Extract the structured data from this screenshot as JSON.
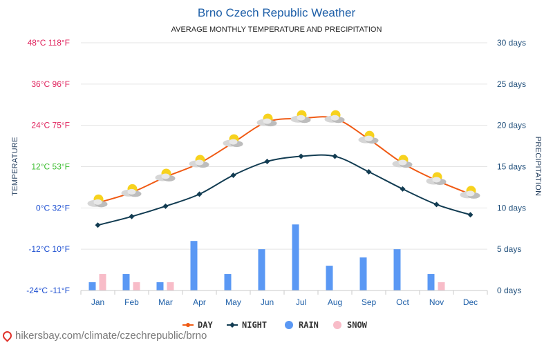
{
  "chart_data": {
    "type": "line",
    "title": "Brno Czech Republic Weather",
    "subtitle": "AVERAGE MONTHLY TEMPERATURE AND PRECIPITATION",
    "ylabel_left": "TEMPERATURE",
    "ylabel_right": "PRECIPITATION",
    "left_ticks": [
      {
        "c": 48,
        "label": "48°C 118°F",
        "color": "#e0245e"
      },
      {
        "c": 36,
        "label": "36°C 96°F",
        "color": "#e0245e"
      },
      {
        "c": 24,
        "label": "24°C 75°F",
        "color": "#e0245e"
      },
      {
        "c": 12,
        "label": "12°C 53°F",
        "color": "#3bbd2f"
      },
      {
        "c": 0,
        "label": "0°C 32°F",
        "color": "#1d4fd1"
      },
      {
        "c": -12,
        "label": "-12°C 10°F",
        "color": "#1d4fd1"
      },
      {
        "c": -24,
        "label": "-24°C -11°F",
        "color": "#1d4fd1"
      }
    ],
    "right_ticks": [
      {
        "d": 30,
        "label": "30 days"
      },
      {
        "d": 25,
        "label": "25 days"
      },
      {
        "d": 20,
        "label": "20 days"
      },
      {
        "d": 15,
        "label": "15 days"
      },
      {
        "d": 10,
        "label": "10 days"
      },
      {
        "d": 5,
        "label": "5 days"
      },
      {
        "d": 0,
        "label": "0 days"
      }
    ],
    "ylim_temp_c": [
      -24,
      48
    ],
    "ylim_days": [
      0,
      30
    ],
    "categories": [
      "Jan",
      "Feb",
      "Mar",
      "Apr",
      "May",
      "Jun",
      "Jul",
      "Aug",
      "Sep",
      "Oct",
      "Nov",
      "Dec"
    ],
    "series": [
      {
        "name": "DAY",
        "kind": "line",
        "color": "#f05a14",
        "values": [
          1.5,
          4.5,
          9,
          13,
          19,
          25,
          26,
          26,
          20,
          13,
          8,
          4
        ]
      },
      {
        "name": "NIGHT",
        "kind": "line",
        "color": "#123c52",
        "values": [
          -5,
          -2.5,
          0.5,
          4,
          9.5,
          13.5,
          15,
          15,
          10.5,
          5.5,
          1,
          -2
        ]
      },
      {
        "name": "RAIN",
        "kind": "bar",
        "color": "#5a98f4",
        "values": [
          1,
          2,
          1,
          6,
          2,
          5,
          8,
          3,
          4,
          5,
          2,
          0
        ]
      },
      {
        "name": "SNOW",
        "kind": "bar",
        "color": "#f8bcc8",
        "values": [
          2,
          1,
          1,
          0,
          0,
          0,
          0,
          0,
          0,
          0,
          1,
          0
        ]
      }
    ],
    "weather_icon": "partly-cloudy-sun-icon",
    "grid": true,
    "legend_position": "bottom-center"
  },
  "footer": {
    "text": "hikersbay.com/climate/czechrepublic/brno",
    "icon": "location-pin-icon"
  }
}
